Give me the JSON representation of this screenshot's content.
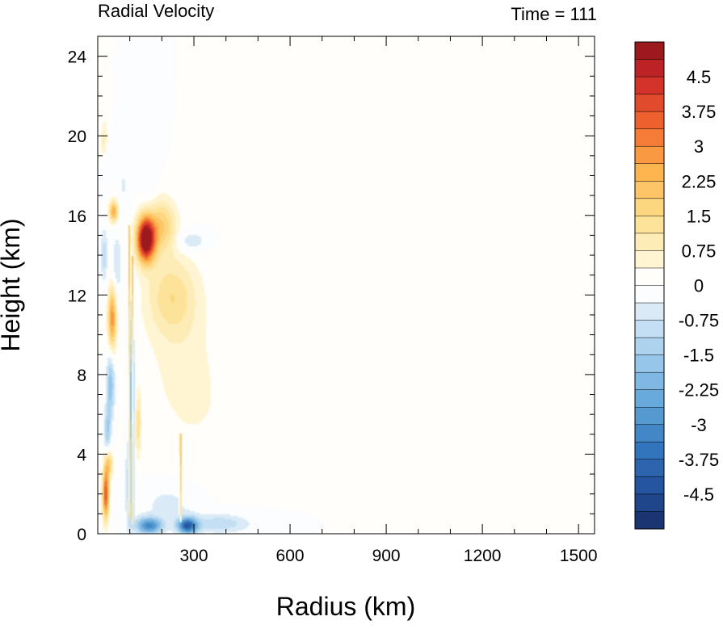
{
  "chart_data": {
    "type": "heatmap",
    "title_left": "Radial Velocity",
    "title_right": "Time = 111",
    "xlabel": "Radius (km)",
    "ylabel": "Height (km)",
    "xlim": [
      0,
      1550
    ],
    "ylim": [
      0,
      25
    ],
    "x_ticks": [
      300,
      600,
      900,
      1200,
      1500
    ],
    "y_ticks": [
      0,
      4,
      8,
      12,
      16,
      20,
      24
    ],
    "colorbar": {
      "min": -5.25,
      "max": 5.25,
      "step": 0.375,
      "labels": [
        "4.5",
        "3.75",
        "3",
        "2.25",
        "1.5",
        "0.75",
        "0",
        "-0.75",
        "-1.5",
        "-2.25",
        "-3",
        "-3.75",
        "-4.5"
      ],
      "label_values": [
        4.5,
        3.75,
        3,
        2.25,
        1.5,
        0.75,
        0,
        -0.75,
        -1.5,
        -2.25,
        -3,
        -3.75,
        -4.5
      ]
    },
    "features": [
      {
        "r": 150,
        "z": 14.8,
        "sr": 28,
        "sz": 1.1,
        "v": 6.0
      },
      {
        "r": 200,
        "z": 15.5,
        "sr": 45,
        "sz": 1.3,
        "v": 1.8
      },
      {
        "r": 230,
        "z": 12.0,
        "sr": 80,
        "sz": 2.0,
        "v": 1.3
      },
      {
        "r": 260,
        "z": 9.0,
        "sr": 110,
        "sz": 3.5,
        "v": 0.45
      },
      {
        "r": 330,
        "z": 6.0,
        "sr": 130,
        "sz": 3.0,
        "v": 0.25
      },
      {
        "r": 50,
        "z": 16.2,
        "sr": 14,
        "sz": 0.55,
        "v": 2.6
      },
      {
        "r": 45,
        "z": 10.8,
        "sr": 13,
        "sz": 1.6,
        "v": 2.9
      },
      {
        "r": 25,
        "z": 2.0,
        "sr": 10,
        "sz": 1.3,
        "v": 3.8
      },
      {
        "r": 35,
        "z": 3.5,
        "sr": 12,
        "sz": 0.7,
        "v": 1.8
      },
      {
        "r": 20,
        "z": 19.7,
        "sr": 10,
        "sz": 1.1,
        "v": 0.9
      },
      {
        "r": 125,
        "z": 5.5,
        "sr": 10,
        "sz": 1.6,
        "v": 1.4
      },
      {
        "r": 40,
        "z": 7.5,
        "sr": 12,
        "sz": 1.6,
        "v": -1.8
      },
      {
        "r": 30,
        "z": 5.2,
        "sr": 10,
        "sz": 1.1,
        "v": -1.5
      },
      {
        "r": 20,
        "z": 14.0,
        "sr": 10,
        "sz": 1.3,
        "v": -1.0
      },
      {
        "r": 25,
        "z": 18.5,
        "sr": 10,
        "sz": 1.0,
        "v": -0.5
      },
      {
        "r": 105,
        "z": 7.0,
        "sr": 10,
        "sz": 2.8,
        "v": -2.4
      },
      {
        "r": 100,
        "z": 2.5,
        "sr": 12,
        "sz": 2.0,
        "v": -1.4
      },
      {
        "r": 100,
        "z": 11.0,
        "sr": 10,
        "sz": 1.5,
        "v": -0.6
      },
      {
        "r": 60,
        "z": 13.5,
        "sr": 15,
        "sz": 1.5,
        "v": -0.8
      },
      {
        "r": 80,
        "z": 17.5,
        "sr": 20,
        "sz": 1.5,
        "v": -0.4
      },
      {
        "r": 160,
        "z": 18.0,
        "sr": 25,
        "sz": 2.5,
        "v": -0.3
      },
      {
        "r": 290,
        "z": 14.7,
        "sr": 45,
        "sz": 0.5,
        "v": -0.8
      },
      {
        "r": 160,
        "z": 0.4,
        "sr": 40,
        "sz": 0.4,
        "v": -3.2
      },
      {
        "r": 280,
        "z": 0.4,
        "sr": 30,
        "sz": 0.4,
        "v": -4.0
      },
      {
        "r": 380,
        "z": 0.5,
        "sr": 90,
        "sz": 0.45,
        "v": -1.1
      },
      {
        "r": 220,
        "z": 1.5,
        "sr": 90,
        "sz": 1.0,
        "v": -0.5
      }
    ],
    "vertical_lines": [
      {
        "r": 97,
        "z0": 0.8,
        "z1": 15.5,
        "v": 2.5
      },
      {
        "r": 108,
        "z0": 0.5,
        "z1": 14.0,
        "v": 2.0
      },
      {
        "r": 258,
        "z0": 0.6,
        "z1": 5.0,
        "v": 2.2
      }
    ]
  }
}
